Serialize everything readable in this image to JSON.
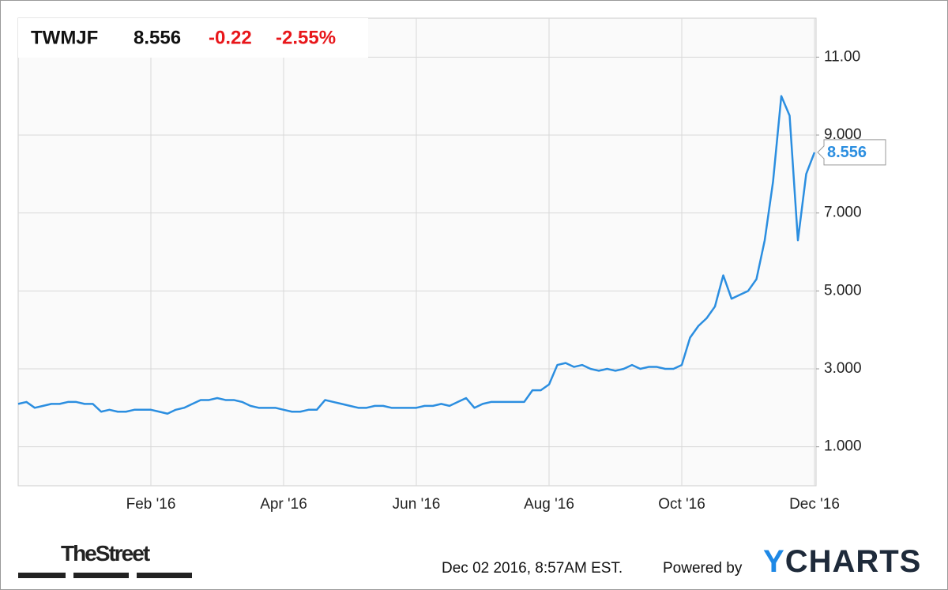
{
  "chart_data": {
    "type": "line",
    "symbol": "TWMJF",
    "price": 8.556,
    "change": -0.22,
    "change_pct": "-2.55%",
    "color": "#2b8ee0",
    "grid": true,
    "categories": [
      null,
      null,
      null,
      null,
      null,
      null,
      null,
      null,
      null,
      null,
      null,
      null,
      null,
      null,
      null,
      null,
      "Feb '16",
      null,
      null,
      null,
      null,
      null,
      null,
      null,
      null,
      null,
      null,
      null,
      null,
      null,
      null,
      null,
      "Apr '16",
      null,
      null,
      null,
      null,
      null,
      null,
      null,
      null,
      null,
      null,
      null,
      null,
      null,
      null,
      null,
      "Jun '16",
      null,
      null,
      null,
      null,
      null,
      null,
      null,
      null,
      null,
      null,
      null,
      null,
      null,
      null,
      null,
      "Aug '16",
      null,
      null,
      null,
      null,
      null,
      null,
      null,
      null,
      null,
      null,
      null,
      null,
      null,
      null,
      null,
      "Oct '16",
      null,
      null,
      null,
      null,
      null,
      null,
      null,
      null,
      null,
      null,
      null,
      null,
      null,
      null,
      null,
      "Dec '16"
    ],
    "values": [
      2.1,
      2.15,
      2.0,
      2.05,
      2.1,
      2.1,
      2.15,
      2.15,
      2.1,
      2.1,
      1.9,
      1.95,
      1.9,
      1.9,
      1.95,
      1.95,
      1.95,
      1.9,
      1.85,
      1.95,
      2.0,
      2.1,
      2.2,
      2.2,
      2.25,
      2.2,
      2.2,
      2.15,
      2.05,
      2.0,
      2.0,
      2.0,
      1.95,
      1.9,
      1.9,
      1.95,
      1.95,
      2.2,
      2.15,
      2.1,
      2.05,
      2.0,
      2.0,
      2.05,
      2.05,
      2.0,
      2.0,
      2.0,
      2.0,
      2.05,
      2.05,
      2.1,
      2.05,
      2.15,
      2.25,
      2.0,
      2.1,
      2.15,
      2.15,
      2.15,
      2.15,
      2.15,
      2.45,
      2.45,
      2.6,
      3.1,
      3.15,
      3.05,
      3.1,
      3.0,
      2.95,
      3.0,
      2.95,
      3.0,
      3.1,
      3.0,
      3.05,
      3.05,
      3.0,
      3.0,
      3.1,
      3.8,
      4.1,
      4.3,
      4.6,
      5.4,
      4.8,
      4.9,
      5.0,
      5.3,
      6.3,
      7.8,
      10.0,
      9.5,
      6.3,
      8.0,
      8.556
    ],
    "ylim": [
      0,
      12
    ],
    "yticks": [
      {
        "value": 1,
        "label": "1.000"
      },
      {
        "value": 3,
        "label": "3.000"
      },
      {
        "value": 5,
        "label": "5.000"
      },
      {
        "value": 7,
        "label": "7.000"
      },
      {
        "value": 9,
        "label": "9.000"
      },
      {
        "value": 11,
        "label": "11.00"
      }
    ],
    "source": "TheStreet",
    "timestamp": "Dec 02 2016, 8:57AM EST.",
    "powered": "Powered by",
    "brand": "YCHARTS"
  }
}
